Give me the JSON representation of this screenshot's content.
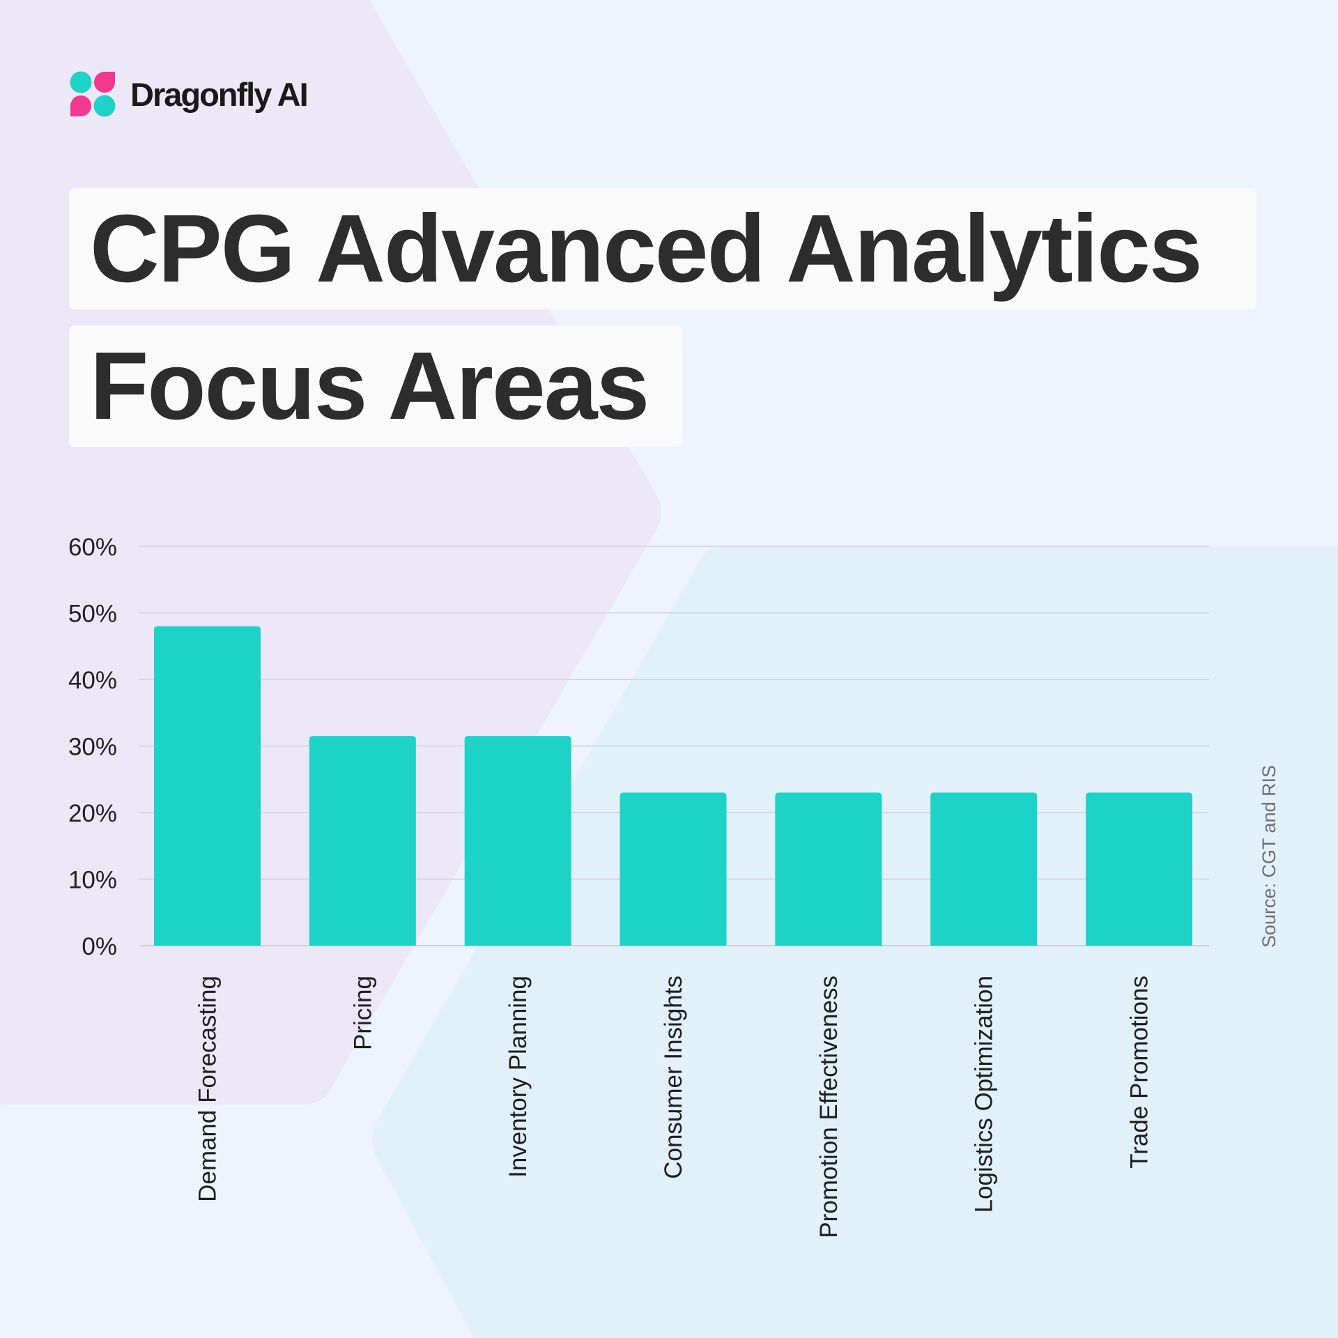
{
  "brand": {
    "name": "Dragonfly AI",
    "colors": {
      "teal": "#1fd3c6",
      "pink": "#f2388f"
    }
  },
  "title": {
    "line1": "CPG Advanced Analytics",
    "line2": "Focus Areas"
  },
  "source": "Source: CGT and RIS",
  "chart_data": {
    "type": "bar",
    "categories": [
      "Demand Forecasting",
      "Pricing",
      "Inventory Planning",
      "Consumer Insights",
      "Promotion Effectiveness",
      "Logistics Optimization",
      "Trade Promotions"
    ],
    "values": [
      48,
      31.5,
      31.5,
      23,
      23,
      23,
      23
    ],
    "value_unit": "%",
    "title": "CPG Advanced Analytics Focus Areas",
    "xlabel": "",
    "ylabel": "",
    "ylim": [
      0,
      60
    ],
    "yticks": [
      0,
      10,
      20,
      30,
      40,
      50,
      60
    ],
    "ytick_labels": [
      "0%",
      "10%",
      "20%",
      "30%",
      "40%",
      "50%",
      "60%"
    ],
    "grid": true,
    "legend": "none",
    "bar_color": "#1dd3c8",
    "grid_color": "#cfcfd6"
  }
}
